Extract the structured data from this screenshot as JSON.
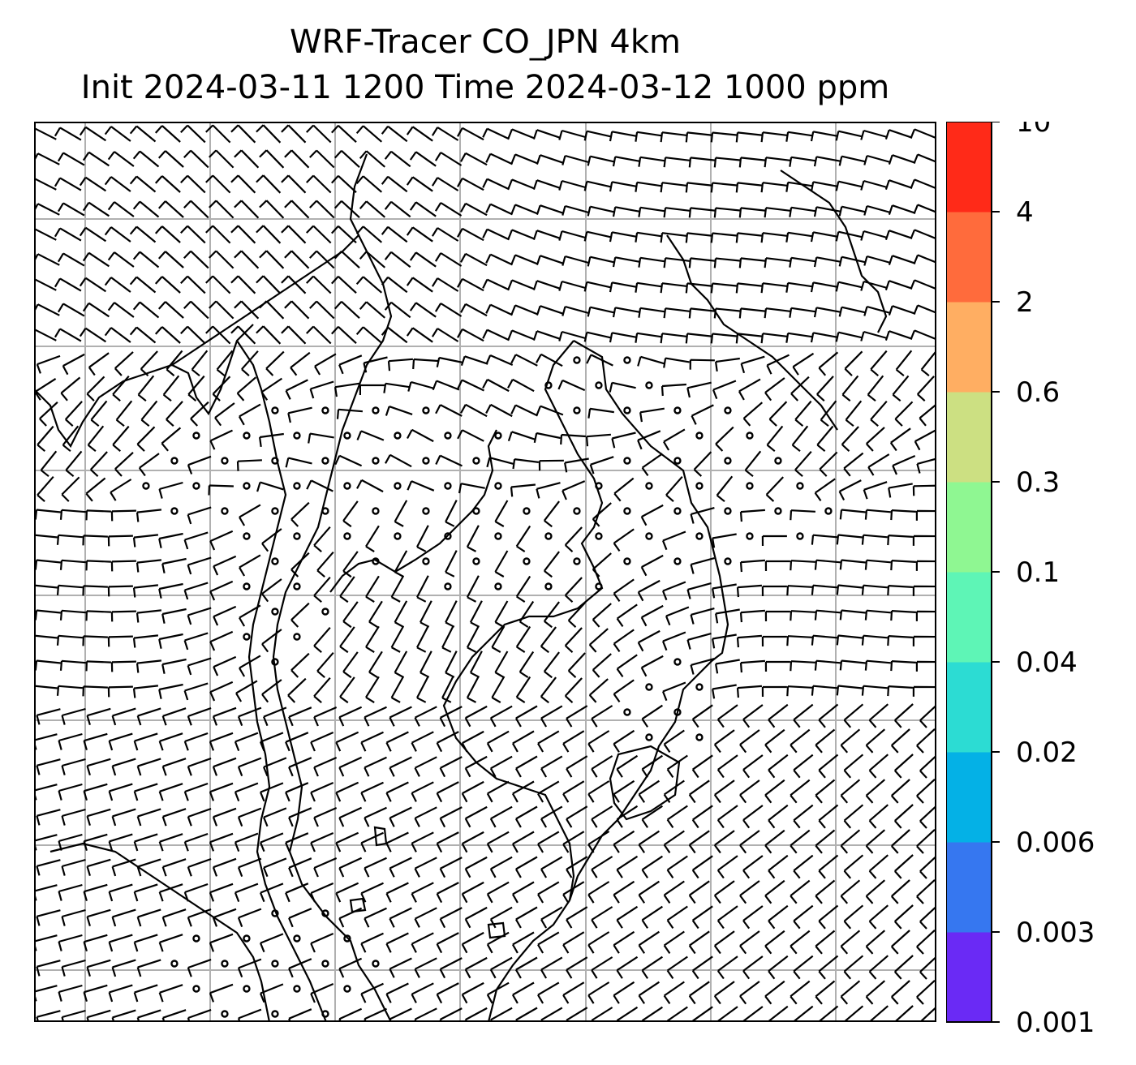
{
  "title": {
    "line1": "WRF-Tracer CO_JPN 4km",
    "line2": "Init 2024-03-11 1200 Time 2024-03-12 1000 ppm"
  },
  "map": {
    "gridlines": "on",
    "barb_color": "#000000",
    "coastline_color": "#000000",
    "gridline_color": "#b0b0b0",
    "background": "#ffffff"
  },
  "colorbar": {
    "ticks": [
      "0.001",
      "0.003",
      "0.006",
      "0.02",
      "0.04",
      "0.1",
      "0.3",
      "0.6",
      "2",
      "4",
      "10"
    ],
    "colors": [
      "#6a2af5",
      "#3677f0",
      "#04b1e6",
      "#2cdcd3",
      "#5ef5b6",
      "#8ff792",
      "#cce082",
      "#ffae62",
      "#ff6b3c",
      "#ff2a18"
    ]
  }
}
